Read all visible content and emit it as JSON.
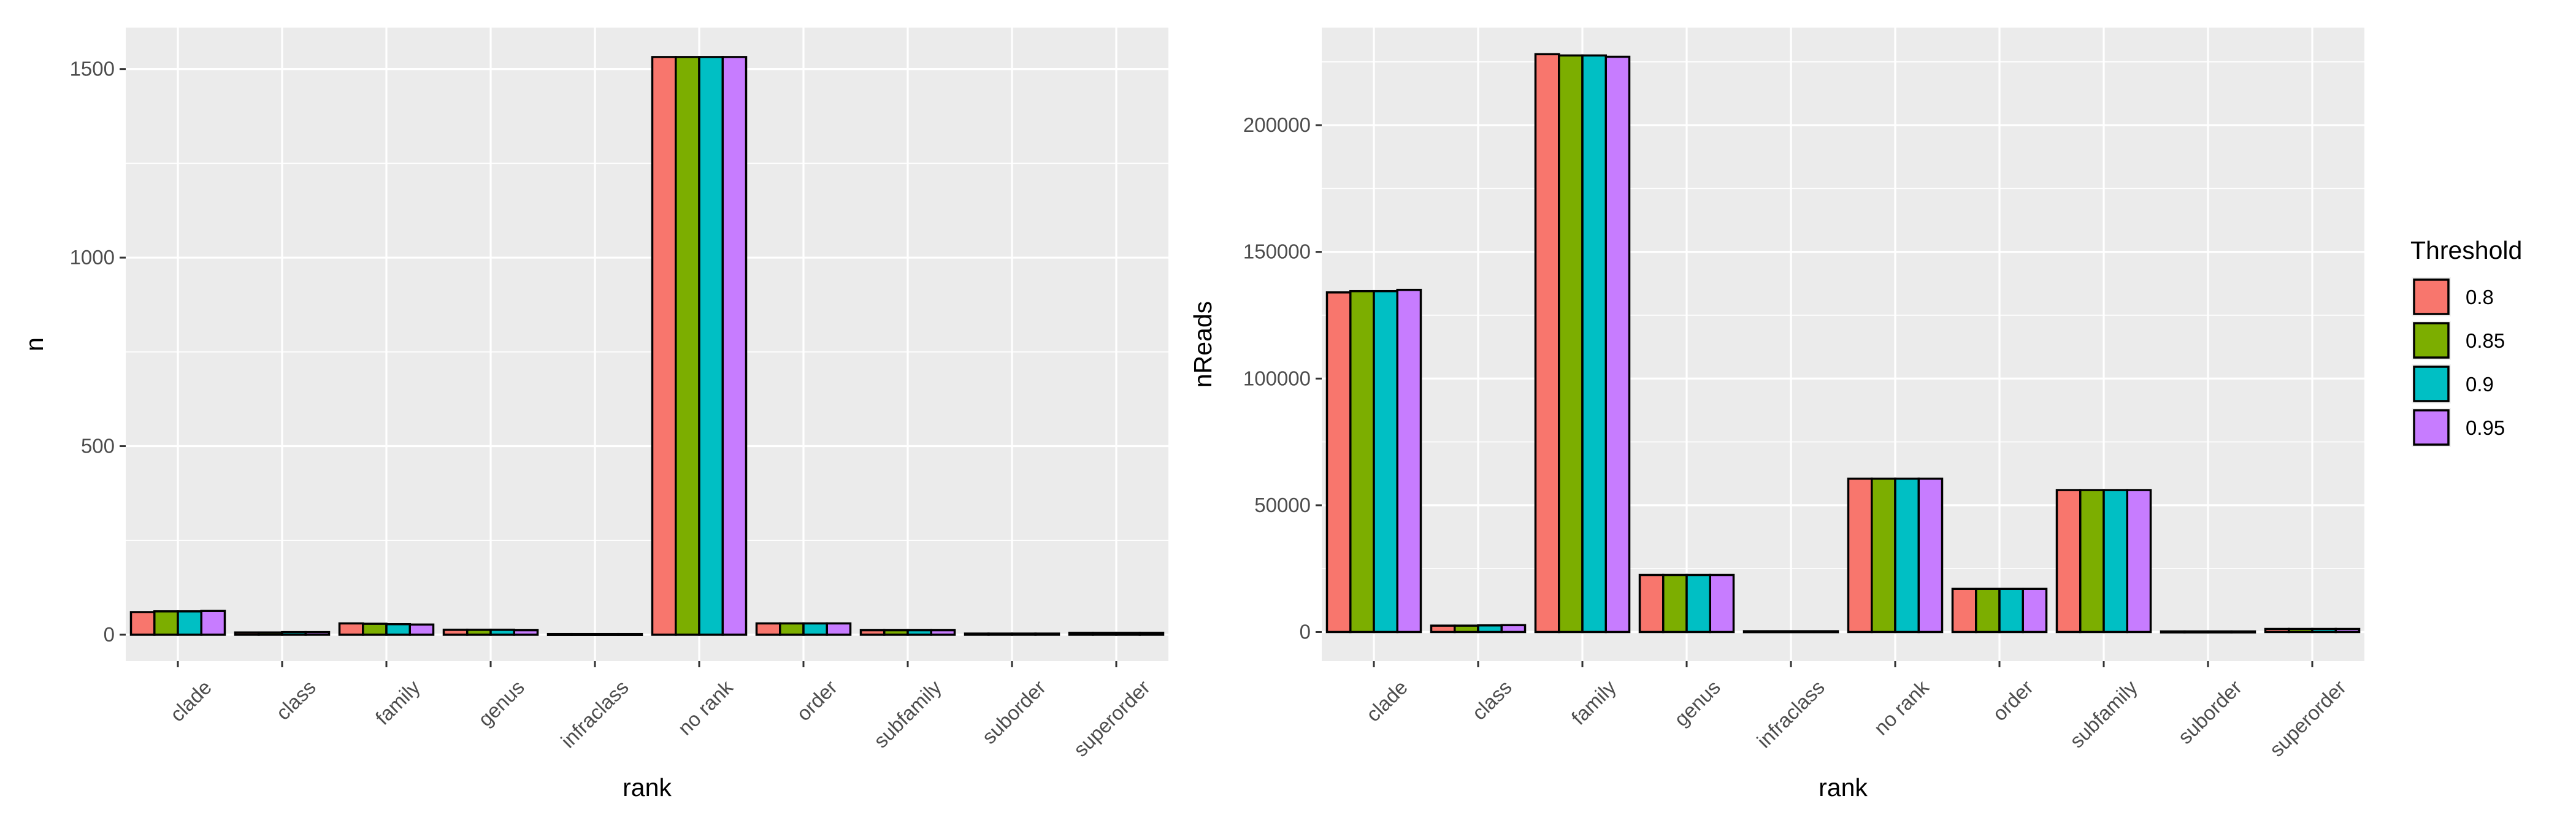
{
  "chart_data": [
    {
      "type": "bar",
      "xlabel": "rank",
      "ylabel": "n",
      "ylim": [
        -70,
        1610
      ],
      "yticks": [
        0,
        500,
        1000,
        1500
      ],
      "categories": [
        "clade",
        "class",
        "family",
        "genus",
        "infraclass",
        "no rank",
        "order",
        "subfamily",
        "suborder",
        "superorder"
      ],
      "series": [
        {
          "name": "0.8",
          "values": [
            60,
            6,
            30,
            13,
            2,
            1532,
            30,
            12,
            3,
            5
          ]
        },
        {
          "name": "0.85",
          "values": [
            62,
            6,
            29,
            13,
            2,
            1532,
            30,
            12,
            3,
            5
          ]
        },
        {
          "name": "0.9",
          "values": [
            62,
            7,
            28,
            13,
            2,
            1532,
            30,
            12,
            3,
            5
          ]
        },
        {
          "name": "0.95",
          "values": [
            63,
            7,
            27,
            12,
            2,
            1532,
            30,
            12,
            3,
            5
          ]
        }
      ],
      "grid": true,
      "legend": "none"
    },
    {
      "type": "bar",
      "xlabel": "rank",
      "ylabel": "nReads",
      "ylim": [
        -11500,
        238500
      ],
      "yticks": [
        0,
        50000,
        100000,
        150000,
        200000
      ],
      "categories": [
        "clade",
        "class",
        "family",
        "genus",
        "infraclass",
        "no rank",
        "order",
        "subfamily",
        "suborder",
        "superorder"
      ],
      "series": [
        {
          "name": "0.8",
          "values": [
            134000,
            2500,
            228000,
            22500,
            300,
            60500,
            17000,
            56000,
            200,
            1200
          ]
        },
        {
          "name": "0.85",
          "values": [
            134500,
            2500,
            227500,
            22500,
            300,
            60500,
            17000,
            56000,
            200,
            1200
          ]
        },
        {
          "name": "0.9",
          "values": [
            134500,
            2600,
            227500,
            22500,
            300,
            60500,
            17000,
            56000,
            200,
            1200
          ]
        },
        {
          "name": "0.95",
          "values": [
            135000,
            2700,
            227000,
            22500,
            300,
            60500,
            17000,
            56000,
            200,
            1200
          ]
        }
      ],
      "grid": true,
      "legend": "right"
    }
  ],
  "legend": {
    "title": "Threshold",
    "items": [
      {
        "label": "0.8",
        "color": "#F8766D"
      },
      {
        "label": "0.85",
        "color": "#7CAE00"
      },
      {
        "label": "0.9",
        "color": "#00BFC4"
      },
      {
        "label": "0.95",
        "color": "#C77CFF"
      }
    ]
  },
  "colors": {
    "panel_background": "#EBEBEB",
    "grid_major": "#FFFFFF",
    "bar_outline": "#000000"
  }
}
